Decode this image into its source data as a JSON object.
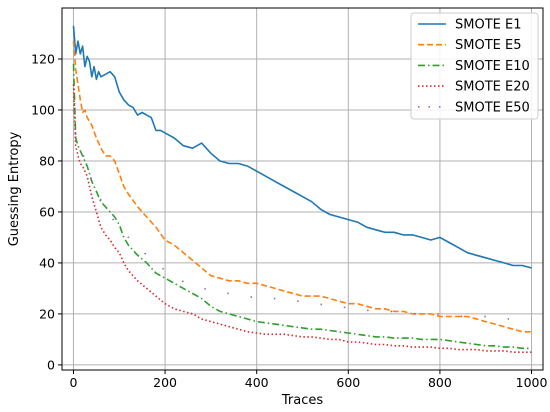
{
  "chart_data": {
    "type": "line",
    "title": "",
    "xlabel": "Traces",
    "ylabel": "Guessing Entropy",
    "xlim": [
      -25,
      1025
    ],
    "ylim": [
      -2,
      140
    ],
    "xticks": [
      0,
      200,
      400,
      600,
      800,
      1000
    ],
    "yticks": [
      0,
      20,
      40,
      60,
      80,
      100,
      120
    ],
    "grid": true,
    "legend_position": "top-right",
    "series": [
      {
        "name": "SMOTE E1",
        "color": "#1f77b4",
        "style": "solid",
        "x": [
          0,
          5,
          10,
          15,
          20,
          25,
          30,
          35,
          40,
          45,
          50,
          55,
          60,
          70,
          80,
          90,
          100,
          110,
          120,
          130,
          140,
          150,
          160,
          170,
          180,
          190,
          200,
          220,
          240,
          260,
          280,
          300,
          320,
          340,
          360,
          380,
          400,
          420,
          440,
          460,
          480,
          500,
          520,
          540,
          560,
          580,
          600,
          620,
          640,
          660,
          680,
          700,
          720,
          740,
          760,
          780,
          800,
          820,
          840,
          860,
          880,
          900,
          920,
          940,
          960,
          980,
          1000
        ],
        "y": [
          133,
          122,
          127,
          122,
          125,
          117,
          121,
          119,
          113,
          117,
          112,
          115,
          113,
          114,
          115,
          113,
          107,
          104,
          102,
          101,
          98,
          99,
          98,
          97,
          92,
          92,
          91,
          89,
          86,
          85,
          87,
          83,
          80,
          79,
          79,
          78,
          76,
          74,
          72,
          70,
          68,
          66,
          64,
          61,
          59,
          58,
          57,
          56,
          54,
          53,
          52,
          52,
          51,
          51,
          50,
          49,
          50,
          48,
          46,
          44,
          43,
          42,
          41,
          40,
          39,
          39,
          38
        ]
      },
      {
        "name": "SMOTE E5",
        "color": "#ff7f0e",
        "style": "dashed",
        "x": [
          0,
          5,
          10,
          15,
          20,
          25,
          30,
          40,
          50,
          60,
          70,
          80,
          90,
          100,
          110,
          120,
          140,
          160,
          180,
          200,
          220,
          240,
          260,
          280,
          300,
          320,
          340,
          360,
          380,
          400,
          420,
          440,
          460,
          480,
          500,
          520,
          540,
          560,
          580,
          600,
          620,
          640,
          660,
          680,
          700,
          720,
          740,
          760,
          780,
          800,
          820,
          840,
          860,
          880,
          900,
          920,
          940,
          960,
          980,
          1000
        ],
        "y": [
          127,
          116,
          110,
          104,
          99,
          100,
          97,
          94,
          89,
          85,
          82,
          82,
          80,
          75,
          70,
          67,
          62,
          58,
          54,
          49,
          47,
          44,
          41,
          38,
          35,
          34,
          33,
          33,
          32,
          32,
          31,
          30,
          29,
          28,
          27,
          27,
          27,
          26,
          25,
          24,
          24,
          23,
          22,
          22,
          21,
          21,
          20,
          20,
          20,
          19,
          19,
          19,
          19,
          18,
          17,
          16,
          15,
          14,
          13,
          13
        ]
      },
      {
        "name": "SMOTE E10",
        "color": "#2ca02c",
        "style": "dashdot",
        "x": [
          0,
          5,
          10,
          15,
          20,
          25,
          30,
          40,
          50,
          60,
          70,
          80,
          90,
          100,
          110,
          120,
          140,
          160,
          180,
          200,
          220,
          240,
          260,
          280,
          300,
          320,
          340,
          360,
          380,
          400,
          420,
          440,
          460,
          480,
          500,
          520,
          540,
          560,
          580,
          600,
          620,
          640,
          660,
          680,
          700,
          720,
          740,
          760,
          780,
          800,
          820,
          840,
          860,
          880,
          900,
          920,
          940,
          960,
          980,
          1000
        ],
        "y": [
          118,
          89,
          86,
          84,
          82,
          80,
          78,
          72,
          68,
          64,
          62,
          60,
          58,
          55,
          50,
          47,
          43,
          40,
          36,
          34,
          32,
          30,
          28,
          26,
          23,
          21,
          20,
          19,
          18,
          17,
          16.5,
          16,
          15.5,
          15,
          14.5,
          14,
          14,
          13.5,
          13,
          12.5,
          12,
          11.5,
          11,
          11,
          10.5,
          10.5,
          10.5,
          10,
          10,
          10,
          9.5,
          9,
          8.5,
          8,
          7.5,
          7.5,
          7,
          7,
          6.5,
          6.5
        ]
      },
      {
        "name": "SMOTE E20",
        "color": "#d62728",
        "style": "dotted",
        "x": [
          0,
          5,
          10,
          15,
          20,
          25,
          30,
          40,
          50,
          60,
          70,
          80,
          90,
          100,
          110,
          120,
          140,
          160,
          180,
          200,
          220,
          240,
          260,
          280,
          300,
          320,
          340,
          360,
          380,
          400,
          420,
          440,
          460,
          480,
          500,
          520,
          540,
          560,
          580,
          600,
          620,
          640,
          660,
          680,
          700,
          720,
          740,
          760,
          780,
          800,
          820,
          840,
          860,
          880,
          900,
          920,
          940,
          960,
          980,
          1000
        ],
        "y": [
          110,
          86,
          82,
          79,
          78,
          76,
          74,
          66,
          60,
          54,
          51,
          49,
          46,
          44,
          40,
          37,
          33,
          30,
          27,
          24,
          22,
          21,
          20,
          18,
          17,
          16,
          15,
          14,
          13,
          12.5,
          12,
          12,
          12,
          11.5,
          11,
          11,
          10.5,
          10,
          10,
          9,
          9,
          8.5,
          8,
          8,
          7.5,
          7.5,
          7,
          7,
          7,
          6.5,
          6.5,
          6,
          6,
          6,
          5.5,
          5.5,
          5.5,
          5,
          5,
          5
        ]
      },
      {
        "name": "SMOTE E50",
        "color": "#9467bd",
        "style": "sparse",
        "x": [
          0,
          5,
          10,
          20,
          30,
          40,
          55,
          70,
          90,
          110,
          140,
          175,
          200,
          235,
          270,
          300,
          340,
          375,
          410,
          450,
          490,
          530,
          570,
          620,
          660,
          700,
          750,
          800,
          850,
          900,
          950,
          1000
        ],
        "y": [
          100,
          90,
          86,
          83,
          78,
          72,
          66,
          62,
          56,
          52,
          46,
          41,
          37,
          33,
          31,
          29,
          28,
          27,
          26,
          26,
          25,
          24,
          23,
          22,
          21,
          21,
          20,
          20,
          19,
          19,
          18,
          18
        ]
      }
    ]
  }
}
